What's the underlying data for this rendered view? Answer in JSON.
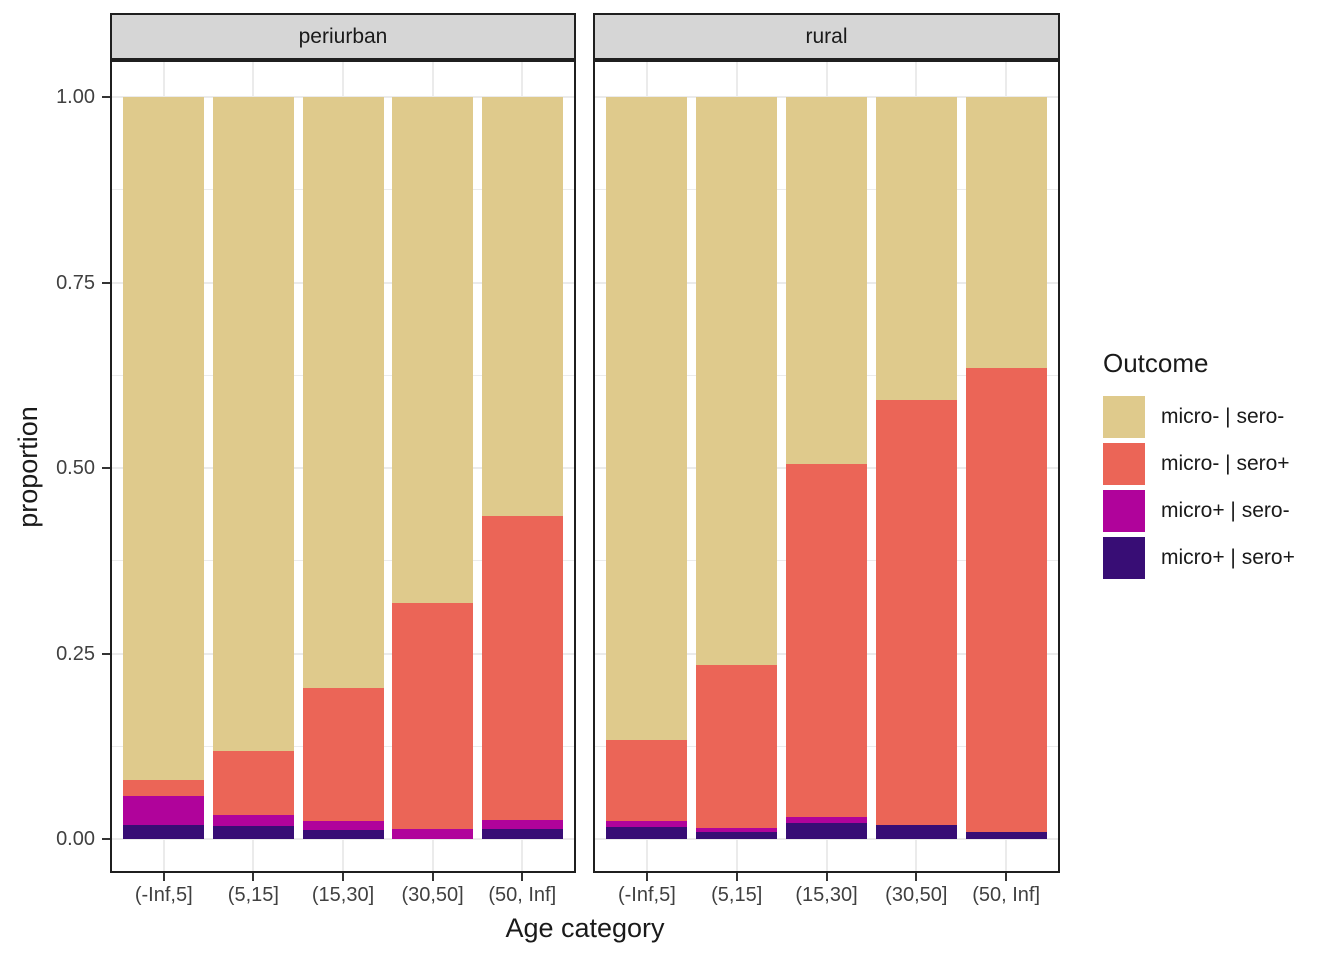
{
  "chart_data": {
    "type": "bar",
    "stacked": true,
    "orientation": "vertical",
    "xlabel": "Age category",
    "ylabel": "proportion",
    "ylim": [
      0,
      1
    ],
    "grid": {
      "major": [
        0,
        0.25,
        0.5,
        0.75,
        1.0
      ],
      "minor": [
        0.125,
        0.375,
        0.625,
        0.875
      ]
    },
    "y_ticks": [
      {
        "label": "0.00",
        "value": 0.0
      },
      {
        "label": "0.25",
        "value": 0.25
      },
      {
        "label": "0.50",
        "value": 0.5
      },
      {
        "label": "0.75",
        "value": 0.75
      },
      {
        "label": "1.00",
        "value": 1.0
      }
    ],
    "categories": [
      "(-Inf,5]",
      "(5,15]",
      "(15,30]",
      "(30,50]",
      "(50, Inf]"
    ],
    "stack_order_bottom_to_top": [
      "micro+ | sero+",
      "micro+ | sero-",
      "micro- | sero+",
      "micro- | sero-"
    ],
    "facets": [
      {
        "label": "periurban",
        "series": [
          {
            "name": "micro- | sero-",
            "values": [
              0.921,
              0.882,
              0.796,
              0.682,
              0.565
            ]
          },
          {
            "name": "micro- | sero+",
            "values": [
              0.021,
              0.086,
              0.18,
              0.305,
              0.41
            ]
          },
          {
            "name": "micro+ | sero-",
            "values": [
              0.039,
              0.014,
              0.012,
              0.013,
              0.011
            ]
          },
          {
            "name": "micro+ | sero+",
            "values": [
              0.019,
              0.018,
              0.012,
              0.0,
              0.014
            ]
          }
        ]
      },
      {
        "label": "rural",
        "series": [
          {
            "name": "micro- | sero-",
            "values": [
              0.866,
              0.765,
              0.495,
              0.408,
              0.365
            ]
          },
          {
            "name": "micro- | sero+",
            "values": [
              0.11,
              0.22,
              0.475,
              0.573,
              0.626
            ]
          },
          {
            "name": "micro+ | sero-",
            "values": [
              0.008,
              0.005,
              0.008,
              0.0,
              0.0
            ]
          },
          {
            "name": "micro+ | sero+",
            "values": [
              0.016,
              0.01,
              0.022,
              0.019,
              0.009
            ]
          }
        ]
      }
    ]
  },
  "legend": {
    "title": "Outcome",
    "items": [
      {
        "label": "micro- | sero-",
        "color": "#dfca8c"
      },
      {
        "label": "micro- | sero+",
        "color": "#eb6557"
      },
      {
        "label": "micro+ | sero-",
        "color": "#b0039b"
      },
      {
        "label": "micro+ | sero+",
        "color": "#380d75"
      }
    ]
  },
  "colors": {
    "series": {
      "micro- | sero-": "#dfca8c",
      "micro- | sero+": "#eb6557",
      "micro+ | sero-": "#b0039b",
      "micro+ | sero+": "#380d75"
    },
    "strip_fill": "#d6d6d6",
    "panel_border": "#1f1f1f",
    "gridline": "#ebebeb",
    "tick": "#333333",
    "tick_text": "#404040",
    "title_text": "#1a1a1a"
  }
}
